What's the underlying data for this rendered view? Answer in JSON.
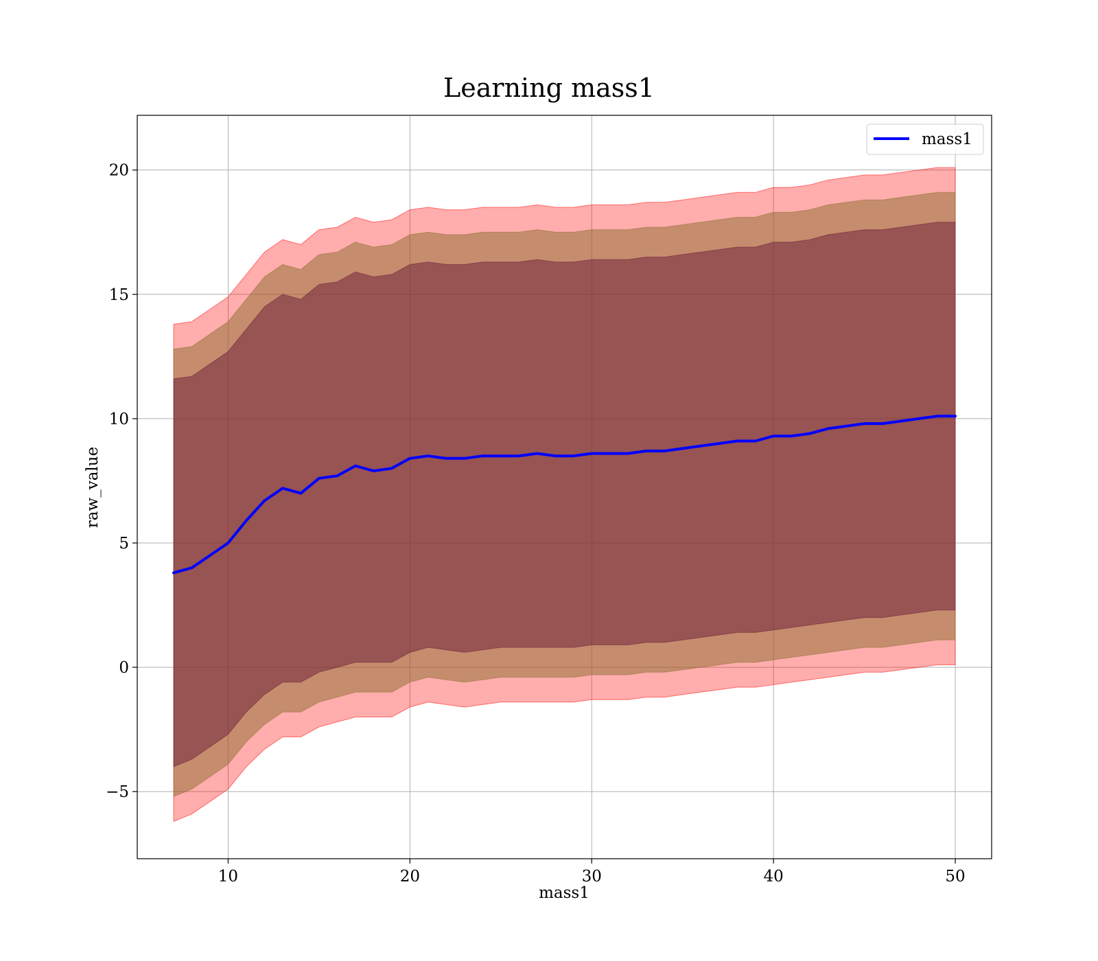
{
  "chart_data": {
    "type": "line",
    "title": "Learning mass1",
    "xlabel": "mass1",
    "ylabel": "raw_value",
    "xlim": [
      5,
      52
    ],
    "ylim": [
      -7.7,
      22.2
    ],
    "xticks": [
      10,
      20,
      30,
      40,
      50
    ],
    "xtick_labels": [
      "10",
      "20",
      "30",
      "40",
      "50"
    ],
    "yticks": [
      -5,
      0,
      5,
      10,
      15,
      20
    ],
    "ytick_labels": [
      "−5",
      "0",
      "5",
      "10",
      "15",
      "20"
    ],
    "grid": true,
    "legend_position": "top-right",
    "colors": {
      "line": "#0000ff",
      "band_outer": "#ff0000",
      "band_middle": "#8b6d2e",
      "band_inner": "#6b1a3a",
      "axes": "#000000",
      "grid": "#b0b0b0"
    },
    "series": [
      {
        "name": "mass1",
        "x": [
          7,
          8,
          9,
          10,
          11,
          12,
          13,
          14,
          15,
          16,
          17,
          18,
          19,
          20,
          21,
          22,
          23,
          24,
          25,
          26,
          27,
          28,
          29,
          30,
          31,
          32,
          33,
          34,
          35,
          36,
          37,
          38,
          39,
          40,
          41,
          42,
          43,
          44,
          45,
          46,
          47,
          48,
          49,
          50
        ],
        "y": [
          3.8,
          4.0,
          4.5,
          5.0,
          5.9,
          6.7,
          7.2,
          7.0,
          7.6,
          7.7,
          8.1,
          7.9,
          8.0,
          8.4,
          8.5,
          8.4,
          8.4,
          8.5,
          8.5,
          8.5,
          8.6,
          8.5,
          8.5,
          8.6,
          8.6,
          8.6,
          8.7,
          8.7,
          8.8,
          8.9,
          9.0,
          9.1,
          9.1,
          9.3,
          9.3,
          9.4,
          9.6,
          9.7,
          9.8,
          9.8,
          9.9,
          10.0,
          10.1,
          10.1
        ]
      }
    ],
    "bands": [
      {
        "color_key": "band_outer",
        "lower": [
          -6.2,
          -5.9,
          -5.4,
          -4.9,
          -4.0,
          -3.3,
          -2.8,
          -2.8,
          -2.4,
          -2.2,
          -2.0,
          -2.0,
          -2.0,
          -1.6,
          -1.4,
          -1.5,
          -1.6,
          -1.5,
          -1.4,
          -1.4,
          -1.4,
          -1.4,
          -1.4,
          -1.3,
          -1.3,
          -1.3,
          -1.2,
          -1.2,
          -1.1,
          -1.0,
          -0.9,
          -0.8,
          -0.8,
          -0.7,
          -0.6,
          -0.5,
          -0.4,
          -0.3,
          -0.2,
          -0.2,
          -0.1,
          0.0,
          0.1,
          0.1
        ],
        "upper": [
          13.8,
          13.9,
          14.4,
          14.9,
          15.8,
          16.7,
          17.2,
          17.0,
          17.6,
          17.7,
          18.1,
          17.9,
          18.0,
          18.4,
          18.5,
          18.4,
          18.4,
          18.5,
          18.5,
          18.5,
          18.6,
          18.5,
          18.5,
          18.6,
          18.6,
          18.6,
          18.7,
          18.7,
          18.8,
          18.9,
          19.0,
          19.1,
          19.1,
          19.3,
          19.3,
          19.4,
          19.6,
          19.7,
          19.8,
          19.8,
          19.9,
          20.0,
          20.1,
          20.1
        ]
      },
      {
        "color_key": "band_middle",
        "lower": [
          -5.2,
          -4.9,
          -4.4,
          -3.9,
          -3.0,
          -2.3,
          -1.8,
          -1.8,
          -1.4,
          -1.2,
          -1.0,
          -1.0,
          -1.0,
          -0.6,
          -0.4,
          -0.5,
          -0.6,
          -0.5,
          -0.4,
          -0.4,
          -0.4,
          -0.4,
          -0.4,
          -0.3,
          -0.3,
          -0.3,
          -0.2,
          -0.2,
          -0.1,
          0.0,
          0.1,
          0.2,
          0.2,
          0.3,
          0.4,
          0.5,
          0.6,
          0.7,
          0.8,
          0.8,
          0.9,
          1.0,
          1.1,
          1.1
        ],
        "upper": [
          12.8,
          12.9,
          13.4,
          13.9,
          14.8,
          15.7,
          16.2,
          16.0,
          16.6,
          16.7,
          17.1,
          16.9,
          17.0,
          17.4,
          17.5,
          17.4,
          17.4,
          17.5,
          17.5,
          17.5,
          17.6,
          17.5,
          17.5,
          17.6,
          17.6,
          17.6,
          17.7,
          17.7,
          17.8,
          17.9,
          18.0,
          18.1,
          18.1,
          18.3,
          18.3,
          18.4,
          18.6,
          18.7,
          18.8,
          18.8,
          18.9,
          19.0,
          19.1,
          19.1
        ]
      },
      {
        "color_key": "band_inner",
        "lower": [
          -4.0,
          -3.7,
          -3.2,
          -2.7,
          -1.8,
          -1.1,
          -0.6,
          -0.6,
          -0.2,
          0.0,
          0.2,
          0.2,
          0.2,
          0.6,
          0.8,
          0.7,
          0.6,
          0.7,
          0.8,
          0.8,
          0.8,
          0.8,
          0.8,
          0.9,
          0.9,
          0.9,
          1.0,
          1.0,
          1.1,
          1.2,
          1.3,
          1.4,
          1.4,
          1.5,
          1.6,
          1.7,
          1.8,
          1.9,
          2.0,
          2.0,
          2.1,
          2.2,
          2.3,
          2.3
        ],
        "upper": [
          11.6,
          11.7,
          12.2,
          12.7,
          13.6,
          14.5,
          15.0,
          14.8,
          15.4,
          15.5,
          15.9,
          15.7,
          15.8,
          16.2,
          16.3,
          16.2,
          16.2,
          16.3,
          16.3,
          16.3,
          16.4,
          16.3,
          16.3,
          16.4,
          16.4,
          16.4,
          16.5,
          16.5,
          16.6,
          16.7,
          16.8,
          16.9,
          16.9,
          17.1,
          17.1,
          17.2,
          17.4,
          17.5,
          17.6,
          17.6,
          17.7,
          17.8,
          17.9,
          17.9
        ]
      }
    ]
  }
}
